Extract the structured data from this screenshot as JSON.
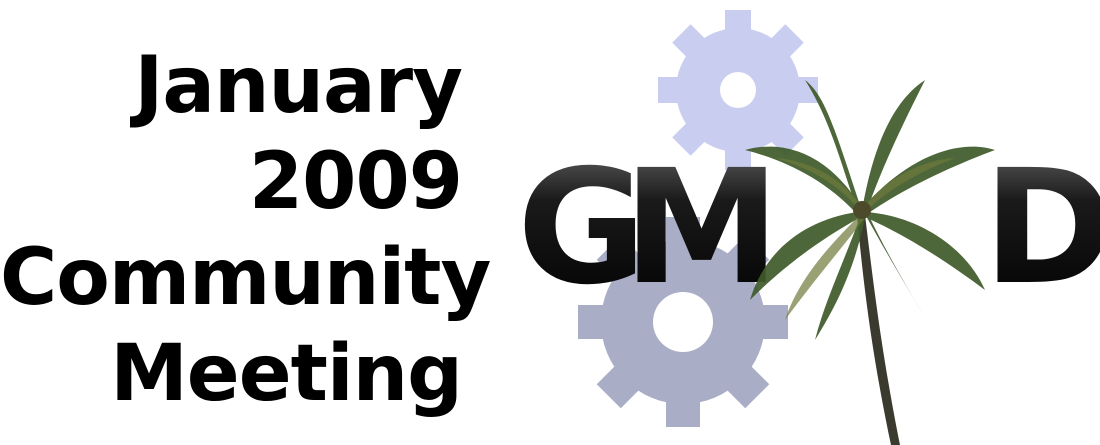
{
  "headline": {
    "line1": "January",
    "line2": "2009",
    "line3": "Community",
    "line4": "Meeting"
  },
  "logo": {
    "letters": [
      "G",
      "M",
      "D"
    ],
    "gear_top_color": "#c9cdf0",
    "gear_bottom_color": "#a9adc6",
    "letter_color": "#111111",
    "palm_frond_color": "#3f5b2a",
    "palm_trunk_color": "#3a3a2e"
  }
}
